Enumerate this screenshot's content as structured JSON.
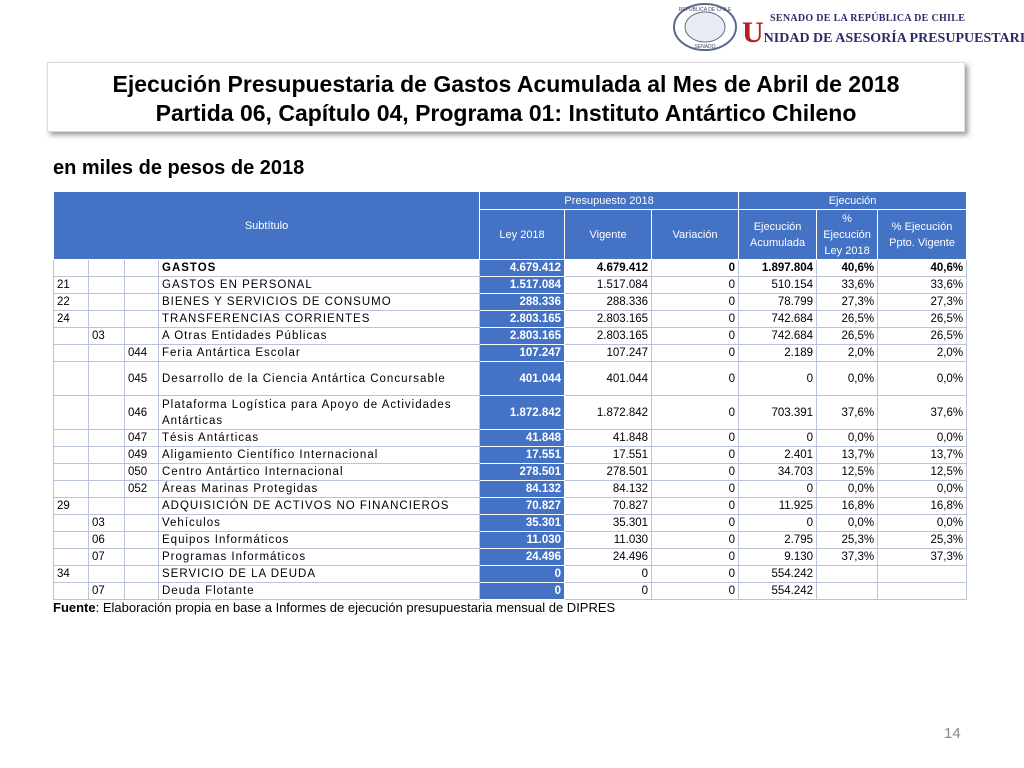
{
  "header": {
    "seal_top": "REPÚBLICA DE CHILE",
    "seal_bottom": "SENADO",
    "org_line1": "SENADO DE LA REPÚBLICA DE CHILE",
    "org_line2": "UNIDAD DE ASESORÍA PRESUPUESTARIA"
  },
  "title": {
    "line1": "Ejecución Presupuestaria de Gastos Acumulada al Mes de Abril de 2018",
    "line2": "Partida 06, Capítulo 04, Programa 01: Instituto Antártico Chileno"
  },
  "subtitle": "en miles de pesos de 2018",
  "table": {
    "headers": {
      "subtitulo": "Subtítulo",
      "presupuesto": "Presupuesto 2018",
      "ejecucion_group": "Ejecución",
      "ley": "Ley 2018",
      "vigente": "Vigente",
      "variacion": "Variación",
      "ejecucion": "Ejecución Acumulada",
      "pct_ley": "% Ejecución Ley 2018",
      "pct_vigente": "% Ejecución Ppto. Vigente"
    },
    "rows": [
      {
        "name": "GASTOS",
        "ley": "4.679.412",
        "vigente": "4.679.412",
        "variacion": "0",
        "ejecucion": "1.897.804",
        "pct_ley": "40,6%",
        "pct_vigente": "40,6%"
      },
      {
        "sub": "21",
        "name": "GASTOS EN PERSONAL",
        "ley": "1.517.084",
        "vigente": "1.517.084",
        "variacion": "0",
        "ejecucion": "510.154",
        "pct_ley": "33,6%",
        "pct_vigente": "33,6%"
      },
      {
        "sub": "22",
        "name": "BIENES Y SERVICIOS DE CONSUMO",
        "ley": "288.336",
        "vigente": "288.336",
        "variacion": "0",
        "ejecucion": "78.799",
        "pct_ley": "27,3%",
        "pct_vigente": "27,3%"
      },
      {
        "sub": "24",
        "name": "TRANSFERENCIAS CORRIENTES",
        "ley": "2.803.165",
        "vigente": "2.803.165",
        "variacion": "0",
        "ejecucion": "742.684",
        "pct_ley": "26,5%",
        "pct_vigente": "26,5%"
      },
      {
        "item": "03",
        "name": "A Otras Entidades Públicas",
        "ley": "2.803.165",
        "vigente": "2.803.165",
        "variacion": "0",
        "ejecucion": "742.684",
        "pct_ley": "26,5%",
        "pct_vigente": "26,5%"
      },
      {
        "asig": "044",
        "name": "Feria Antártica Escolar",
        "ley": "107.247",
        "vigente": "107.247",
        "variacion": "0",
        "ejecucion": "2.189",
        "pct_ley": "2,0%",
        "pct_vigente": "2,0%"
      },
      {
        "asig": "045",
        "name": "Desarrollo de la Ciencia Antártica Concursable",
        "ley": "401.044",
        "vigente": "401.044",
        "variacion": "0",
        "ejecucion": "0",
        "pct_ley": "0,0%",
        "pct_vigente": "0,0%"
      },
      {
        "asig": "046",
        "name": "Plataforma Logística para Apoyo de Actividades Antárticas",
        "ley": "1.872.842",
        "vigente": "1.872.842",
        "variacion": "0",
        "ejecucion": "703.391",
        "pct_ley": "37,6%",
        "pct_vigente": "37,6%"
      },
      {
        "asig": "047",
        "name": "Tésis Antárticas",
        "ley": "41.848",
        "vigente": "41.848",
        "variacion": "0",
        "ejecucion": "0",
        "pct_ley": "0,0%",
        "pct_vigente": "0,0%"
      },
      {
        "asig": "049",
        "name": "Aligamiento Científico Internacional",
        "ley": "17.551",
        "vigente": "17.551",
        "variacion": "0",
        "ejecucion": "2.401",
        "pct_ley": "13,7%",
        "pct_vigente": "13,7%"
      },
      {
        "asig": "050",
        "name": "Centro Antártico Internacional",
        "ley": "278.501",
        "vigente": "278.501",
        "variacion": "0",
        "ejecucion": "34.703",
        "pct_ley": "12,5%",
        "pct_vigente": "12,5%"
      },
      {
        "asig": "052",
        "name": "Áreas Marinas Protegidas",
        "ley": "84.132",
        "vigente": "84.132",
        "variacion": "0",
        "ejecucion": "0",
        "pct_ley": "0,0%",
        "pct_vigente": "0,0%"
      },
      {
        "sub": "29",
        "name": "ADQUISICIÓN DE ACTIVOS NO FINANCIEROS",
        "ley": "70.827",
        "vigente": "70.827",
        "variacion": "0",
        "ejecucion": "11.925",
        "pct_ley": "16,8%",
        "pct_vigente": "16,8%"
      },
      {
        "item": "03",
        "name": "Vehículos",
        "ley": "35.301",
        "vigente": "35.301",
        "variacion": "0",
        "ejecucion": "0",
        "pct_ley": "0,0%",
        "pct_vigente": "0,0%"
      },
      {
        "item": "06",
        "name": "Equipos Informáticos",
        "ley": "11.030",
        "vigente": "11.030",
        "variacion": "0",
        "ejecucion": "2.795",
        "pct_ley": "25,3%",
        "pct_vigente": "25,3%"
      },
      {
        "item": "07",
        "name": "Programas Informáticos",
        "ley": "24.496",
        "vigente": "24.496",
        "variacion": "0",
        "ejecucion": "9.130",
        "pct_ley": "37,3%",
        "pct_vigente": "37,3%"
      },
      {
        "sub": "34",
        "name": "SERVICIO DE LA DEUDA",
        "ley": "0",
        "vigente": "0",
        "variacion": "0",
        "ejecucion": "554.242"
      },
      {
        "item": "07",
        "name": "Deuda Flotante",
        "ley": "0",
        "vigente": "0",
        "variacion": "0",
        "ejecucion": "554.242"
      }
    ]
  },
  "source": {
    "label": "Fuente",
    "text": ": Elaboración propia en base  a Informes de ejecución presupuestaria mensual de DIPRES"
  },
  "page_number": "14"
}
